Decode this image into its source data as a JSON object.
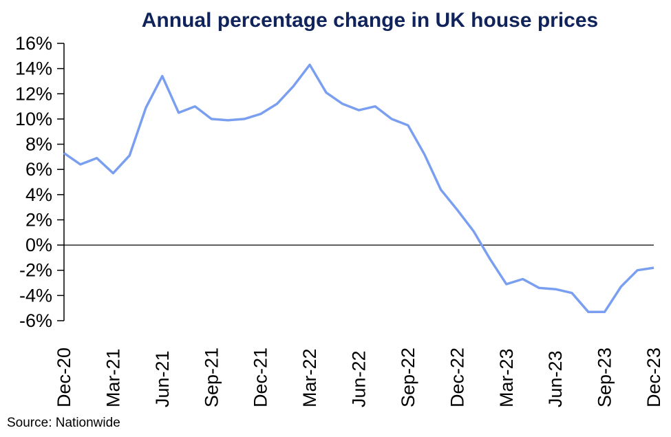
{
  "source_note": "Source: Nationwide",
  "colors": {
    "line": "#7b9ff0",
    "axis": "#000000",
    "title": "#10235a",
    "tick_text": "#000000"
  },
  "chart_data": {
    "type": "line",
    "title": "Annual percentage change in UK house prices",
    "x": [
      "Dec-20",
      "Jan-21",
      "Feb-21",
      "Mar-21",
      "Apr-21",
      "May-21",
      "Jun-21",
      "Jul-21",
      "Aug-21",
      "Sep-21",
      "Oct-21",
      "Nov-21",
      "Dec-21",
      "Jan-22",
      "Feb-22",
      "Mar-22",
      "Apr-22",
      "May-22",
      "Jun-22",
      "Jul-22",
      "Aug-22",
      "Sep-22",
      "Oct-22",
      "Nov-22",
      "Dec-22",
      "Jan-23",
      "Feb-23",
      "Mar-23",
      "Apr-23",
      "May-23",
      "Jun-23",
      "Jul-23",
      "Aug-23",
      "Sep-23",
      "Oct-23",
      "Nov-23",
      "Dec-23"
    ],
    "series": [
      {
        "name": "Annual percentage change",
        "values": [
          7.3,
          6.4,
          6.9,
          5.7,
          7.1,
          10.9,
          13.4,
          10.5,
          11.0,
          10.0,
          9.9,
          10.0,
          10.4,
          11.2,
          12.6,
          14.3,
          12.1,
          11.2,
          10.7,
          11.0,
          10.0,
          9.5,
          7.2,
          4.4,
          2.8,
          1.1,
          -1.1,
          -3.1,
          -2.7,
          -3.4,
          -3.5,
          -3.8,
          -5.3,
          -5.3,
          -3.3,
          -2.0,
          -1.8
        ]
      }
    ],
    "xlabel": "",
    "ylabel": "",
    "ylim": [
      -6,
      16
    ],
    "y_tick_step": 2,
    "y_tick_suffix": "%",
    "x_tick_every": 3,
    "x_tick_labels": [
      "Dec-20",
      "Mar-21",
      "Jun-21",
      "Sep-21",
      "Dec-21",
      "Mar-22",
      "Jun-22",
      "Sep-22",
      "Dec-22",
      "Mar-23",
      "Jun-23",
      "Sep-23",
      "Dec-23"
    ],
    "zero_line": true,
    "grid": false,
    "legend": false
  }
}
